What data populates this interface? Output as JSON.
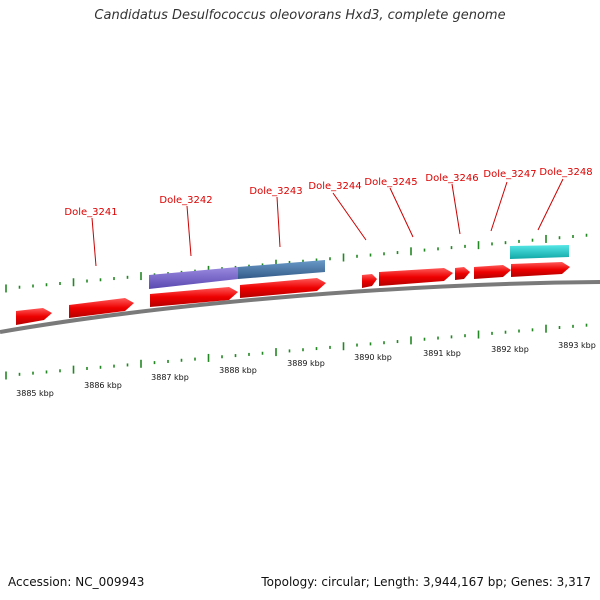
{
  "header": {
    "title": "Candidatus Desulfococcus oleovorans Hxd3, complete genome"
  },
  "footer": {
    "accession": "Accession: NC_009943",
    "summary": "Topology: circular; Length: 3,944,167 bp; Genes: 3,317"
  },
  "colors": {
    "gene": "#ee0000",
    "backbone": "#888888",
    "tick": "#228822",
    "feature_purple": "#7766cc",
    "feature_blue": "#4477aa",
    "feature_cyan": "#22cccc",
    "label": "#dd0000"
  },
  "chart_data": {
    "type": "genome-map",
    "kbp_labels": [
      "3885 kbp",
      "3886 kbp",
      "3887 kbp",
      "3888 kbp",
      "3889 kbp",
      "3890 kbp",
      "3891 kbp",
      "3892 kbp",
      "3893 kbp"
    ],
    "gene_labels": [
      "Dole_3241",
      "Dole_3242",
      "Dole_3243",
      "Dole_3244",
      "Dole_3245",
      "Dole_3246",
      "Dole_3247",
      "Dole_3248"
    ]
  }
}
